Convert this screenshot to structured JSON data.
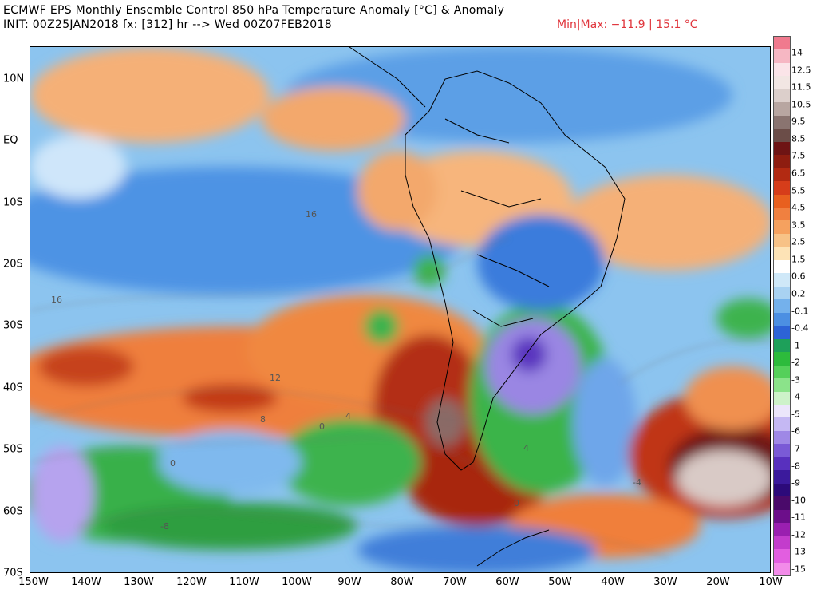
{
  "header": {
    "title": "ECMWF EPS Monthly Ensemble Control 850 hPa Temperature Anomaly [°C] & Anomaly",
    "init_line": "INIT: 00Z25JAN2018 fx: [312] hr --> Wed 00Z07FEB2018",
    "minmax": "Min|Max: −11.9 | 15.1 °C"
  },
  "map": {
    "lat_labels": [
      "10N",
      "EQ",
      "10S",
      "20S",
      "30S",
      "40S",
      "50S",
      "60S",
      "70S"
    ],
    "lon_labels": [
      "150W",
      "140W",
      "130W",
      "120W",
      "110W",
      "100W",
      "90W",
      "80W",
      "70W",
      "60W",
      "50W",
      "40W",
      "30W",
      "20W",
      "10W"
    ],
    "contour_labels": [
      "16",
      "16",
      "12",
      "8",
      "4",
      "0",
      "0",
      "-4",
      "-8",
      "0",
      "4"
    ]
  },
  "colorbar": {
    "labels": [
      "14",
      "12.5",
      "11.5",
      "10.5",
      "9.5",
      "8.5",
      "7.5",
      "6.5",
      "5.5",
      "4.5",
      "3.5",
      "2.5",
      "1.5",
      "0.6",
      "0.2",
      "-0.1",
      "-0.4",
      "-1",
      "-2",
      "-3",
      "-4",
      "-5",
      "-6",
      "-7",
      "-8",
      "-9",
      "-10",
      "-11",
      "-12",
      "-13",
      "-15"
    ],
    "colors": [
      "#f07a8e",
      "#f6b7c3",
      "#fbe4e8",
      "#f2e6e3",
      "#dccfcb",
      "#b8a6a1",
      "#8a7470",
      "#6b4d48",
      "#6e1414",
      "#8e1d10",
      "#b22a12",
      "#d63d1a",
      "#e8601f",
      "#f08040",
      "#f5a15f",
      "#f7c287",
      "#fde3b6",
      "#ffffff",
      "#cfe8f8",
      "#a9d2f2",
      "#74b1ec",
      "#4c8fe2",
      "#2d63d6",
      "#1ea05a",
      "#2dbb3c",
      "#55d05a",
      "#8be38a",
      "#cdf2c9",
      "#ece6fb",
      "#c5b8f3",
      "#9f88e6",
      "#7a5ad6",
      "#5830be",
      "#3b1a9c",
      "#2c0a7a",
      "#4a0a6a",
      "#6c0e8a",
      "#9a1fb0",
      "#c33ccc",
      "#e25ee0",
      "#f28be9"
    ]
  }
}
